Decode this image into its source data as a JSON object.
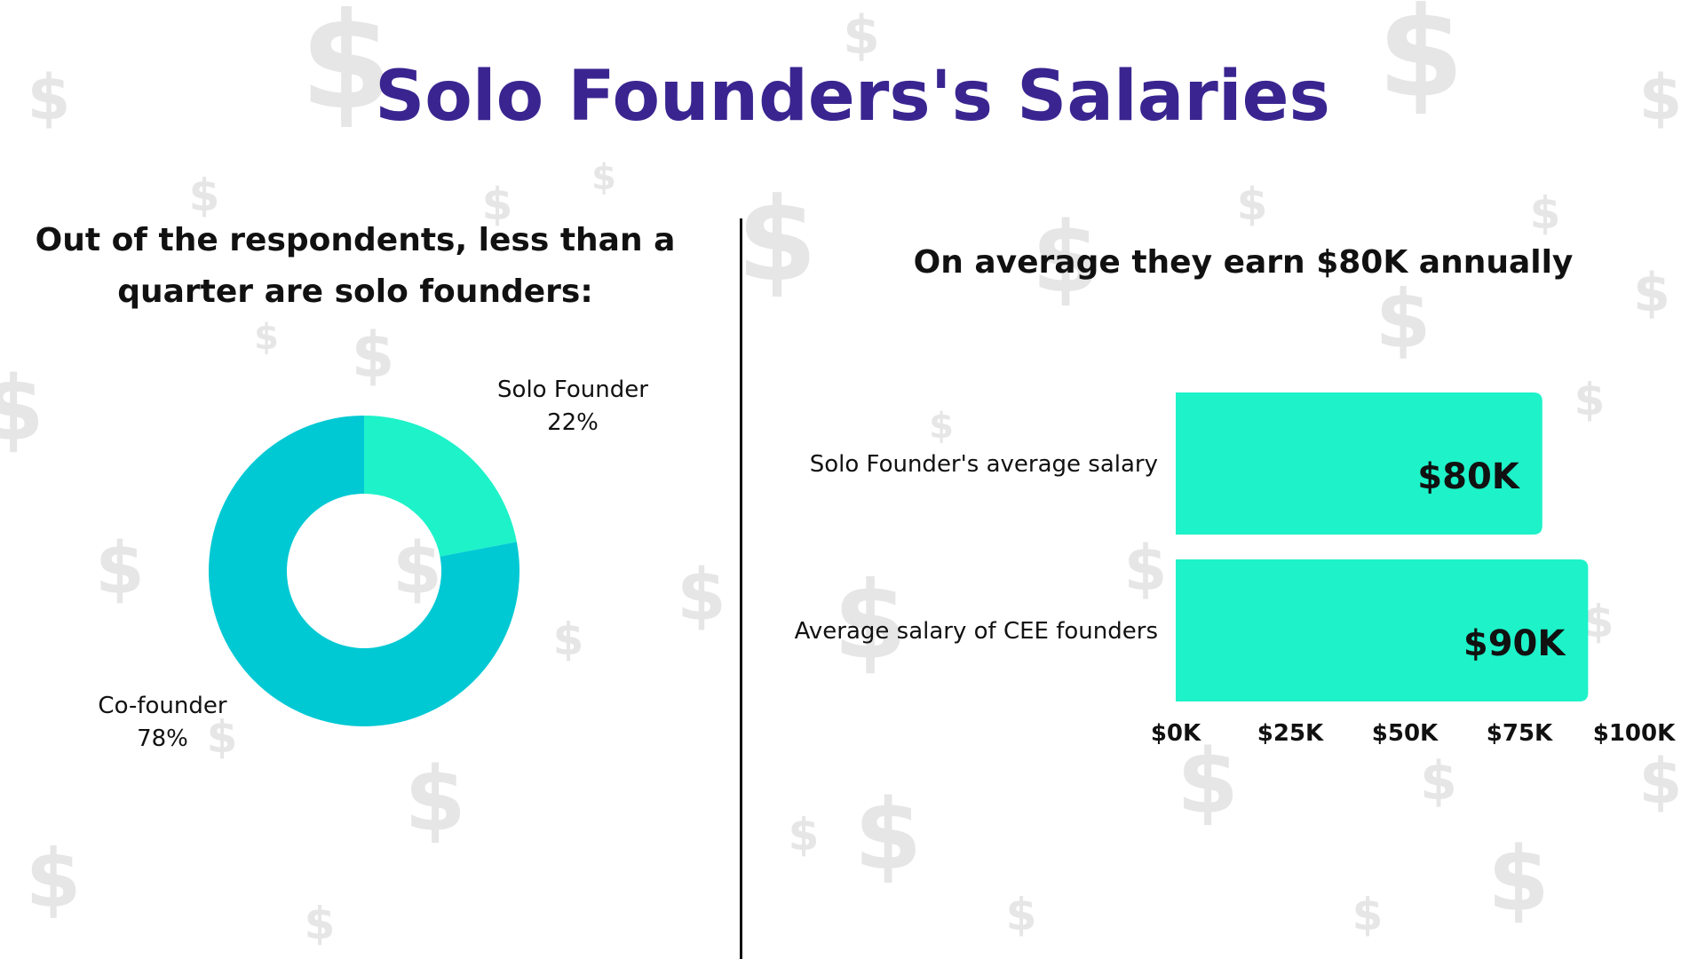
{
  "title": "Solo Founders's Salaries",
  "left_panel": {
    "subtitle": "Out of the respondents, less than a quarter are solo founders:"
  },
  "right_panel": {
    "subtitle": "On average they earn $80K annually"
  },
  "colors": {
    "title": "#3a2590",
    "solo_founder": "#1ef2c9",
    "co_founder": "#00c9d4",
    "bar": "#1ef2c9",
    "text": "#111111",
    "watermark": "#e6e6e6"
  },
  "background_icon": "dollar-sign-icon",
  "chart_data": [
    {
      "type": "pie",
      "variant": "donut",
      "slices": [
        {
          "label": "Solo Founder",
          "value": 22,
          "value_label": "22%",
          "color": "#1ef2c9"
        },
        {
          "label": "Co-founder",
          "value": 78,
          "value_label": "78%",
          "color": "#00c9d4"
        }
      ]
    },
    {
      "type": "bar",
      "orientation": "horizontal",
      "categories": [
        "Solo Founder's average salary",
        "Average salary of CEE founders"
      ],
      "values": [
        80000,
        90000
      ],
      "data_labels": [
        "$80K",
        "$90K"
      ],
      "xlim": [
        0,
        100000
      ],
      "x_ticks": [
        0,
        25000,
        50000,
        75000,
        100000
      ],
      "x_tick_labels": [
        "$0K",
        "$25K",
        "$50K",
        "$75K",
        "$100K"
      ],
      "grid": false
    }
  ]
}
